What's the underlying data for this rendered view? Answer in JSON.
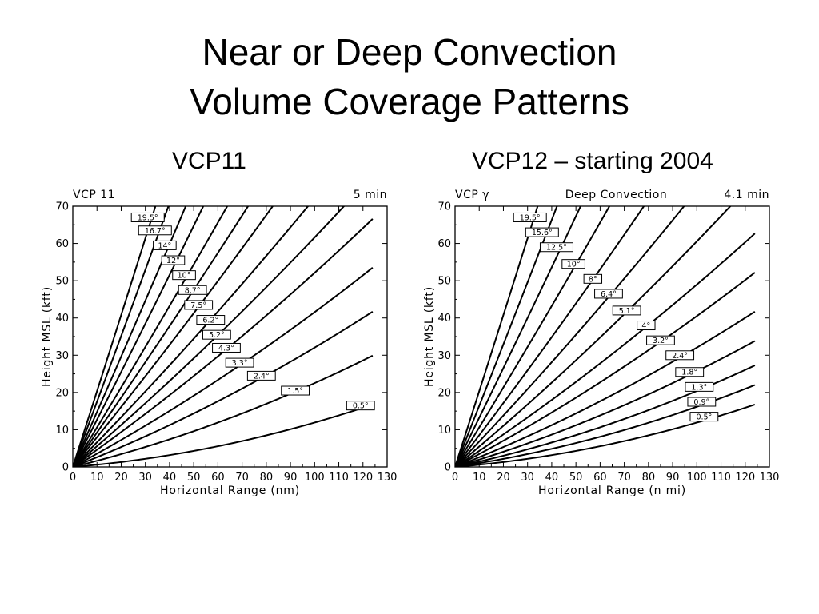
{
  "slide": {
    "title_line1": "Near or Deep Convection",
    "title_line2": "Volume Coverage Patterns",
    "left_caption": "VCP11",
    "right_caption": "VCP12 – starting 2004"
  },
  "chart_data": [
    {
      "type": "line",
      "corner_left": "VCP 11",
      "corner_center": "",
      "corner_right": "5 min",
      "xlabel": "Horizontal Range (nm)",
      "ylabel": "Height MSL (kft)",
      "xlim": [
        0,
        130
      ],
      "ylim": [
        0,
        70
      ],
      "xticks": [
        "0",
        "10",
        "20",
        "30",
        "40",
        "50",
        "60",
        "70",
        "80",
        "90",
        "100",
        "110",
        "120",
        "130"
      ],
      "yticks": [
        "0",
        "10",
        "20",
        "30",
        "40",
        "50",
        "60",
        "70"
      ],
      "grid": false,
      "range_max": 124,
      "elevations": [
        0.5,
        1.5,
        2.4,
        3.3,
        4.3,
        5.2,
        6.2,
        7.5,
        8.7,
        10,
        12,
        14,
        16.7,
        19.5
      ],
      "labels": [
        {
          "text": "19.5°",
          "x": 31,
          "y": 67
        },
        {
          "text": "16.7°",
          "x": 34,
          "y": 63.5
        },
        {
          "text": "14°",
          "x": 38,
          "y": 59.5
        },
        {
          "text": "12°",
          "x": 41.5,
          "y": 55.5
        },
        {
          "text": "10°",
          "x": 46,
          "y": 51.5
        },
        {
          "text": "8.7°",
          "x": 49.5,
          "y": 47.5
        },
        {
          "text": "7.5°",
          "x": 52,
          "y": 43.5
        },
        {
          "text": "6.2°",
          "x": 57,
          "y": 39.5
        },
        {
          "text": "5.2°",
          "x": 59.5,
          "y": 35.5
        },
        {
          "text": "4.3°",
          "x": 63.5,
          "y": 32
        },
        {
          "text": "3.3°",
          "x": 69,
          "y": 28
        },
        {
          "text": "2.4°",
          "x": 78,
          "y": 24.5
        },
        {
          "text": "1.5°",
          "x": 92,
          "y": 20.5
        },
        {
          "text": "0.5°",
          "x": 119,
          "y": 16.5
        }
      ]
    },
    {
      "type": "line",
      "corner_left": "VCP γ",
      "corner_center": "Deep Convection",
      "corner_right": "4.1 min",
      "xlabel": "Horizontal Range (n mi)",
      "ylabel": "Height MSL (kft)",
      "xlim": [
        0,
        130
      ],
      "ylim": [
        0,
        70
      ],
      "xticks": [
        "0",
        "10",
        "20",
        "30",
        "40",
        "50",
        "60",
        "70",
        "80",
        "90",
        "100",
        "110",
        "120",
        "130"
      ],
      "yticks": [
        "0",
        "10",
        "20",
        "30",
        "40",
        "50",
        "60",
        "70"
      ],
      "grid": false,
      "range_max": 124,
      "elevations": [
        0.5,
        0.9,
        1.3,
        1.8,
        2.4,
        3.2,
        4,
        5.1,
        6.4,
        8,
        10,
        12.5,
        15.6,
        19.5
      ],
      "labels": [
        {
          "text": "19.5°",
          "x": 31,
          "y": 67
        },
        {
          "text": "15.6°",
          "x": 36,
          "y": 63
        },
        {
          "text": "12.5°",
          "x": 42,
          "y": 59
        },
        {
          "text": "10°",
          "x": 49,
          "y": 54.5
        },
        {
          "text": "8°",
          "x": 57,
          "y": 50.5
        },
        {
          "text": "6.4°",
          "x": 63.5,
          "y": 46.5
        },
        {
          "text": "5.1°",
          "x": 71,
          "y": 42
        },
        {
          "text": "4°",
          "x": 79,
          "y": 38
        },
        {
          "text": "3.2°",
          "x": 85,
          "y": 34
        },
        {
          "text": "2.4°",
          "x": 93,
          "y": 30
        },
        {
          "text": "1.8°",
          "x": 97,
          "y": 25.5
        },
        {
          "text": "1.3°",
          "x": 101,
          "y": 21.5
        },
        {
          "text": "0.9°",
          "x": 102,
          "y": 17.5
        },
        {
          "text": "0.5°",
          "x": 103,
          "y": 13.5
        }
      ]
    }
  ]
}
